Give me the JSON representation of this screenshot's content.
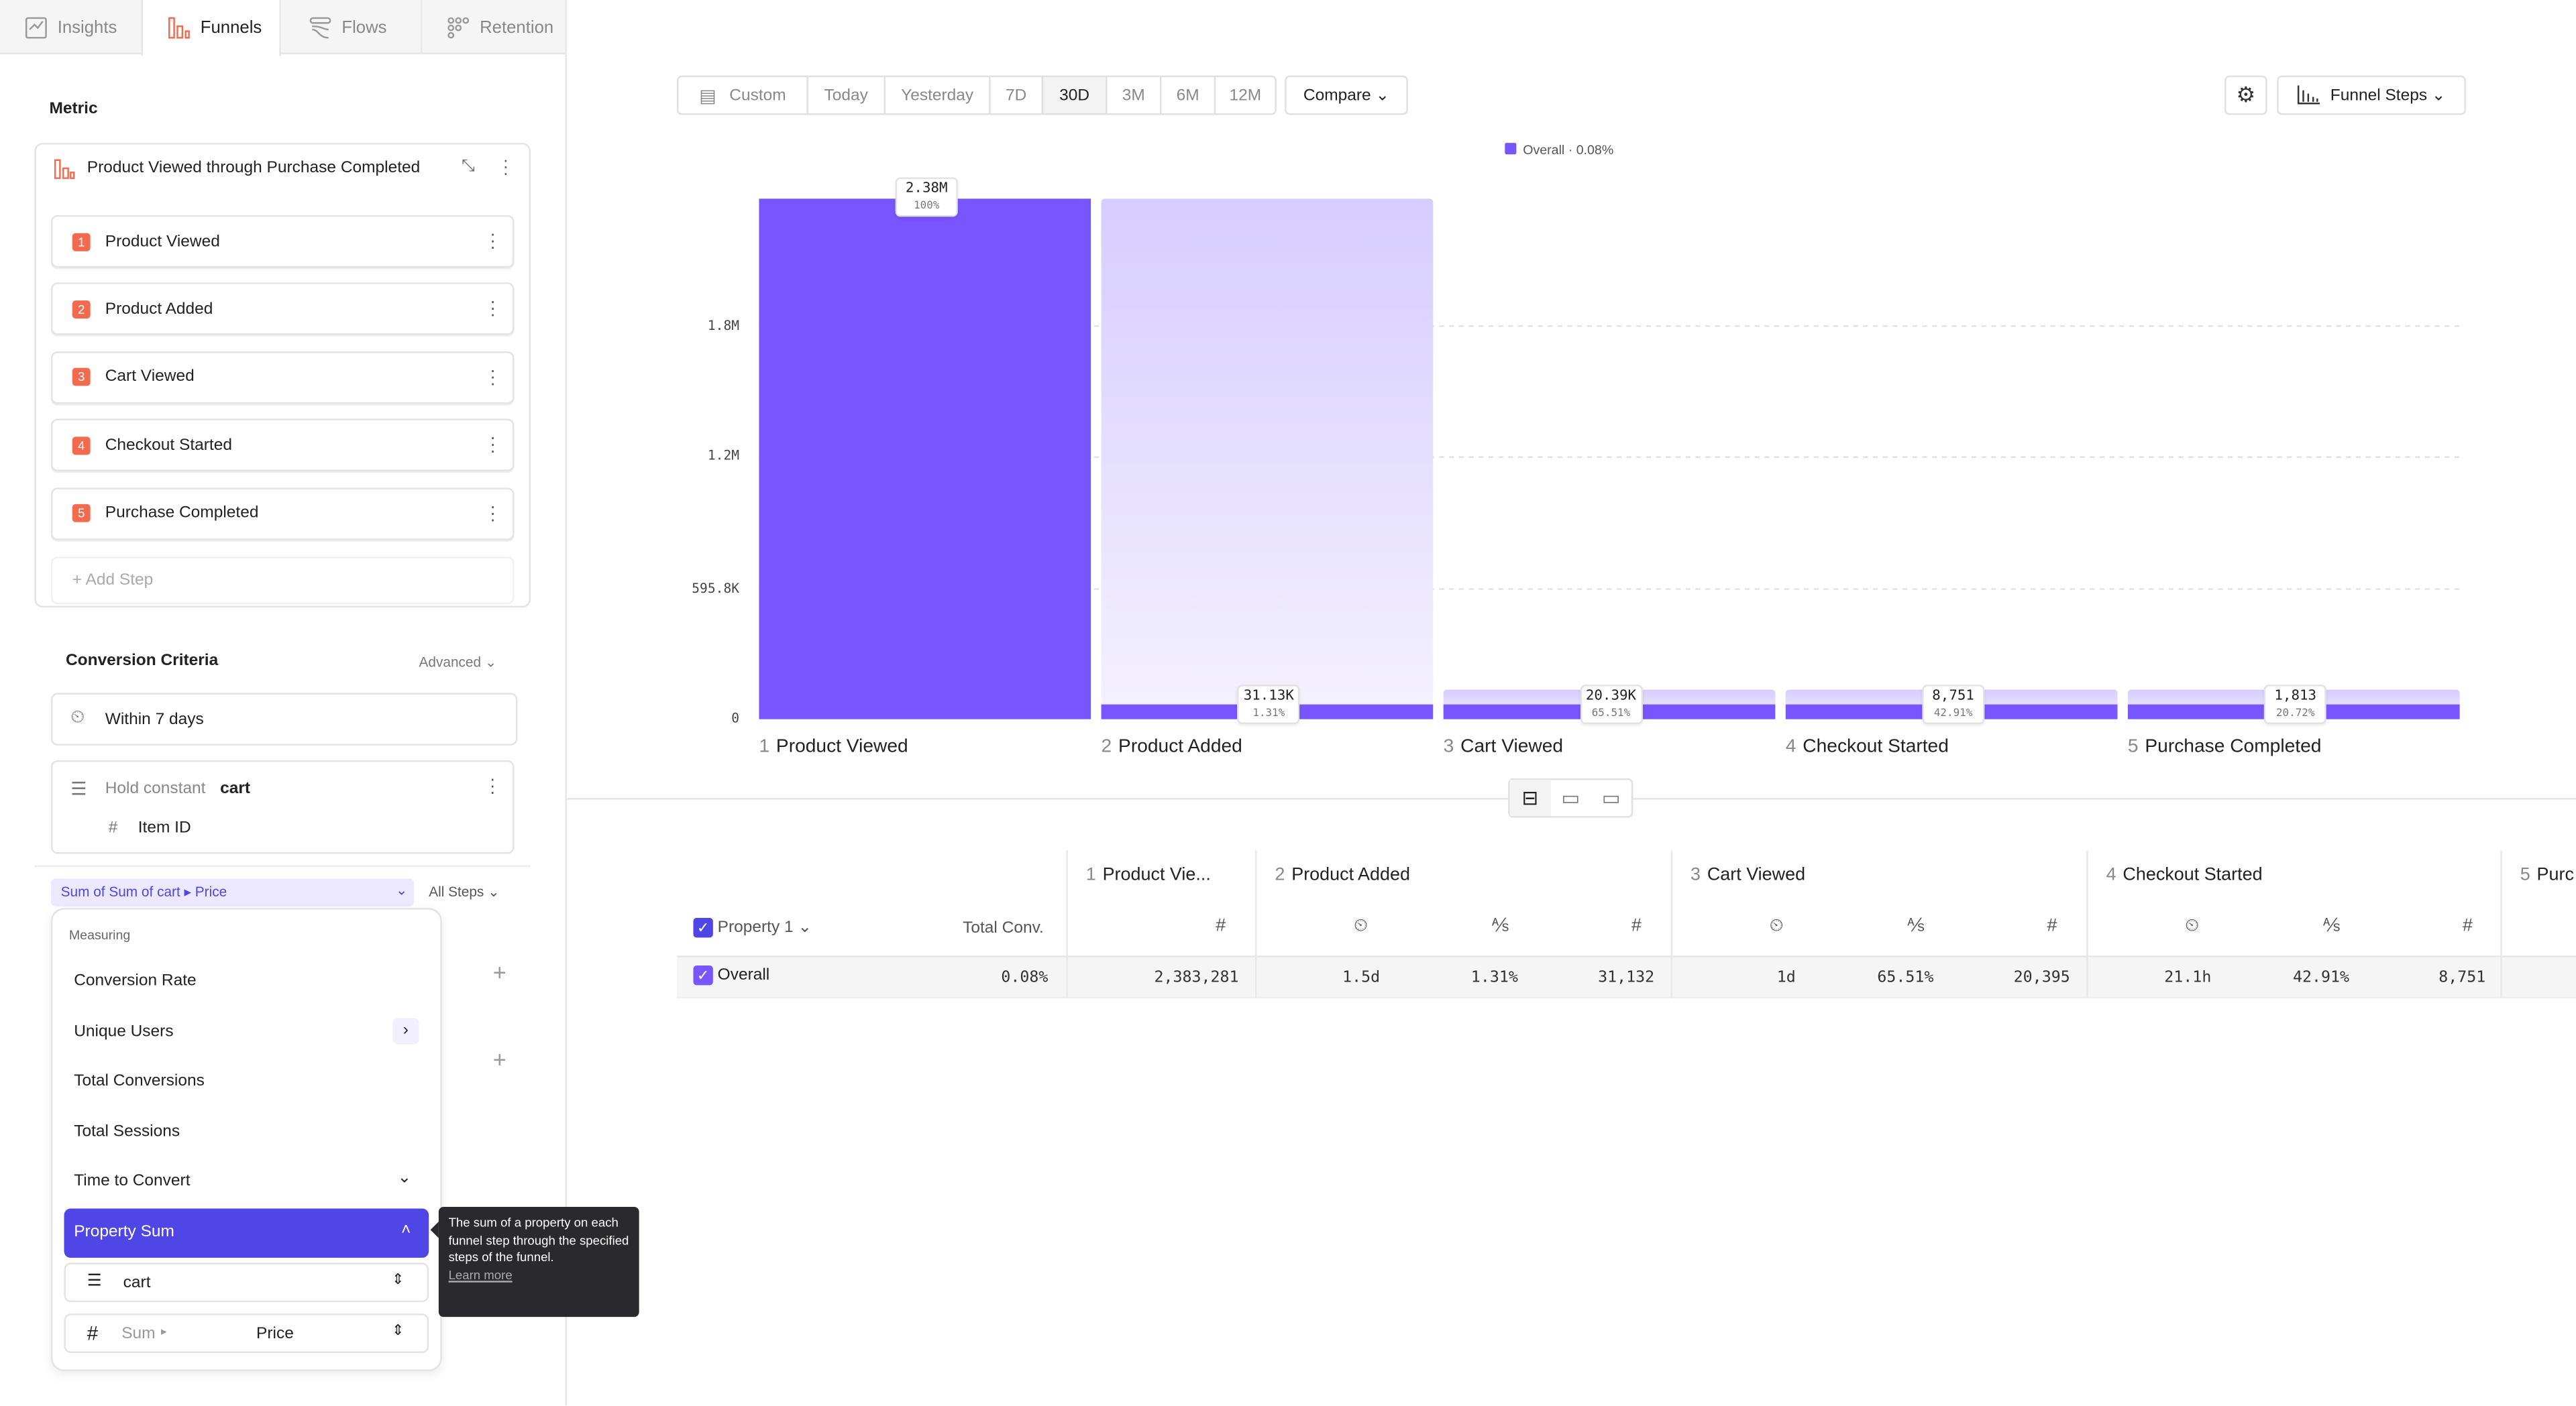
{
  "tabs": [
    {
      "label": "Insights",
      "icon": "insights-icon"
    },
    {
      "label": "Funnels",
      "icon": "funnel-icon",
      "active": true
    },
    {
      "label": "Flows",
      "icon": "flows-icon"
    },
    {
      "label": "Retention",
      "icon": "retention-icon"
    }
  ],
  "sidebar": {
    "metric_heading": "Metric",
    "metric_title": "Product Viewed through Purchase Completed",
    "steps": [
      {
        "num": "1",
        "label": "Product Viewed"
      },
      {
        "num": "2",
        "label": "Product Added"
      },
      {
        "num": "3",
        "label": "Cart Viewed"
      },
      {
        "num": "4",
        "label": "Checkout Started"
      },
      {
        "num": "5",
        "label": "Purchase Completed"
      }
    ],
    "add_step": "Add Step",
    "conversion_criteria": "Conversion Criteria",
    "advanced": "Advanced",
    "within": "Within 7 days",
    "hold_constant_prefix": "Hold constant",
    "hold_constant_value": "cart",
    "hold_item": "Item ID",
    "measure_select": "Sum of Sum of cart ▸ Price",
    "all_steps": "All Steps"
  },
  "menu": {
    "heading": "Measuring",
    "items": [
      "Conversion Rate",
      "Unique Users",
      "Total Conversions",
      "Total Sessions",
      "Time to Convert",
      "Property Sum"
    ],
    "property_select": "cart",
    "agg_label": "Sum",
    "agg_property": "Price",
    "tooltip": "The sum of a property on each funnel step through the specified steps of the funnel.",
    "tooltip_link": "Learn more"
  },
  "toolbar": {
    "ranges": [
      "Custom",
      "Today",
      "Yesterday",
      "7D",
      "30D",
      "3M",
      "6M",
      "12M"
    ],
    "selected_range": "30D",
    "compare": "Compare",
    "funnel_steps": "Funnel Steps"
  },
  "chart_data": {
    "type": "bar",
    "legend": "Overall · 0.08%",
    "legend_placement": "top-center",
    "color": "#7856ff",
    "ghost_color": "#d8d0ff",
    "categories": [
      "Product Viewed",
      "Product Added",
      "Cart Viewed",
      "Checkout Started",
      "Purchase Completed"
    ],
    "values": [
      2383281,
      31132,
      20395,
      8751,
      1813
    ],
    "value_labels": [
      "2.38M",
      "31.13K",
      "20.39K",
      "8,751",
      "1,813"
    ],
    "pct_labels": [
      "100%",
      "1.31%",
      "65.51%",
      "42.91%",
      "20.72%"
    ],
    "yticks": [
      "0",
      "595.8K",
      "1.2M",
      "1.8M"
    ],
    "ytick_values": [
      0,
      595800,
      1200000,
      1800000
    ],
    "ylim": [
      0,
      2383281
    ],
    "grid": true
  },
  "table": {
    "property_col": "Property 1",
    "total_conv": "Total Conv.",
    "steps": [
      {
        "num": "1",
        "label": "Product Vie..."
      },
      {
        "num": "2",
        "label": "Product Added"
      },
      {
        "num": "3",
        "label": "Cart Viewed"
      },
      {
        "num": "4",
        "label": "Checkout Started"
      },
      {
        "num": "5",
        "label": "Purc"
      }
    ],
    "row": {
      "label": "Overall",
      "total": "0.08%",
      "s1": "2,383,281",
      "s2": [
        "1.5d",
        "1.31%",
        "31,132"
      ],
      "s3": [
        "1d",
        "65.51%",
        "20,395"
      ],
      "s4": [
        "21.1h",
        "42.91%",
        "8,751"
      ]
    }
  }
}
